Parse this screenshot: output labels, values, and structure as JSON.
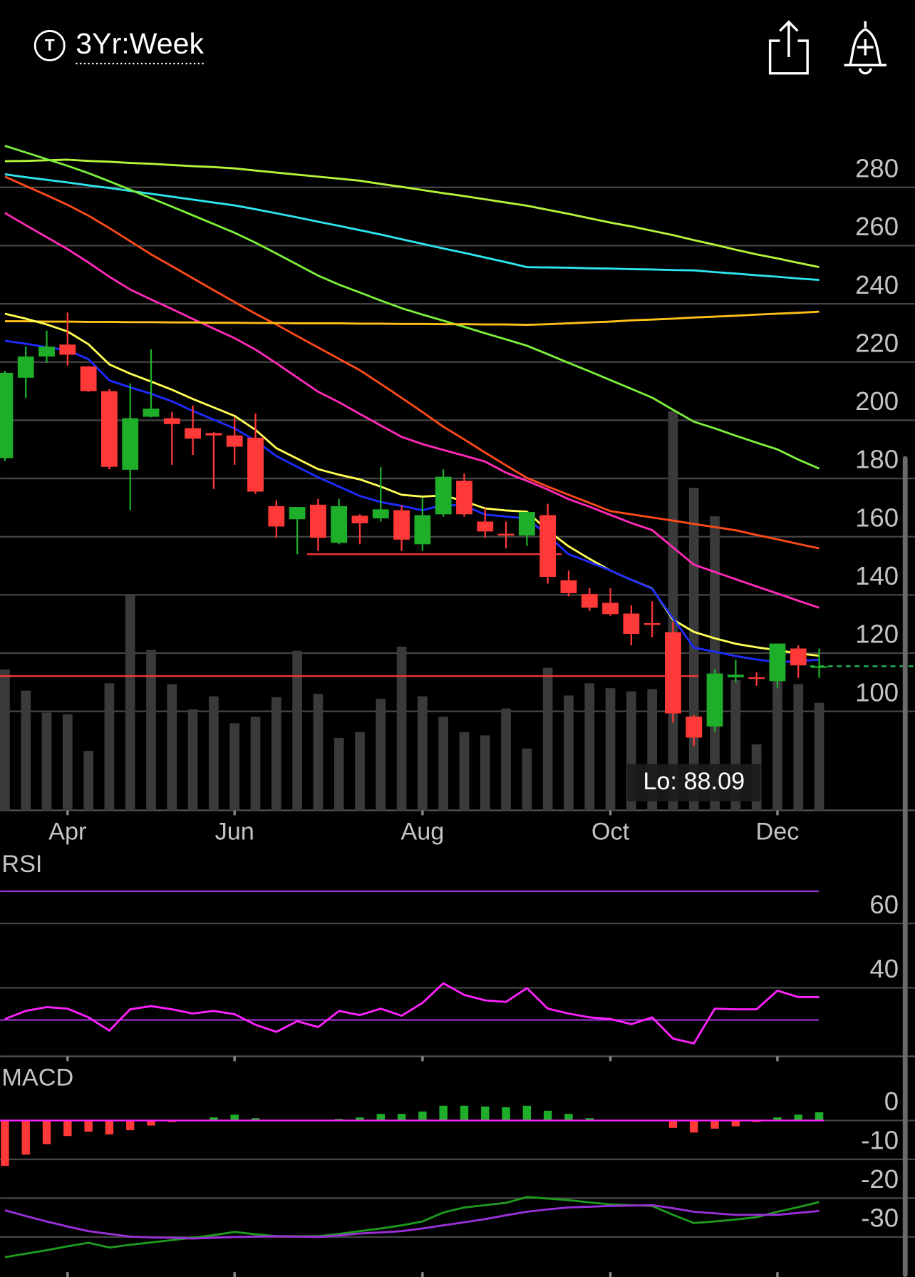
{
  "header": {
    "title": "3Yr:Week"
  },
  "chart_data": [
    {
      "type": "candlestick",
      "categories": [
        null,
        null,
        null,
        "Apr",
        null,
        null,
        null,
        null,
        null,
        null,
        null,
        "Jun",
        null,
        null,
        null,
        null,
        null,
        null,
        null,
        null,
        "Aug",
        null,
        null,
        null,
        null,
        null,
        null,
        null,
        null,
        "Oct",
        null,
        null,
        null,
        null,
        null,
        null,
        null,
        "Dec",
        null,
        null
      ],
      "open": [
        187,
        214.6,
        221.9,
        226,
        218.5,
        210,
        183,
        201.2,
        200.7,
        197.3,
        195.6,
        194.8,
        194,
        170.5,
        166,
        171,
        157.9,
        167.2,
        166.3,
        169.1,
        157.4,
        167.7,
        179.2,
        165.2,
        161,
        160.4,
        167.4,
        145,
        140.3,
        137.3,
        133.6,
        130.3,
        127.2,
        98.2,
        94.8,
        111.7,
        111.7,
        110.4,
        121.6,
        115.2
      ],
      "high": [
        217,
        225.3,
        230.8,
        237,
        218.6,
        210.7,
        212.7,
        224.4,
        202.9,
        205.1,
        195.9,
        201,
        202.3,
        172.5,
        170.2,
        173,
        173,
        167.7,
        183.9,
        170.8,
        173.3,
        183.1,
        181.7,
        169.7,
        165.2,
        168.5,
        171.3,
        148.4,
        142.3,
        142.3,
        136.4,
        137.8,
        130.8,
        98.7,
        114.4,
        117.7,
        113.4,
        122.1,
        122.7,
        121.6
      ],
      "low": [
        186,
        207.7,
        219.7,
        218.8,
        209.8,
        183.1,
        169.1,
        201,
        184.7,
        188.1,
        176.4,
        184.7,
        174.7,
        159.6,
        154,
        155.1,
        157.4,
        157.4,
        165.2,
        155.1,
        155.1,
        166.9,
        166.9,
        159.6,
        156,
        156.8,
        143.9,
        139.5,
        134.5,
        132.8,
        122.7,
        125.5,
        96.2,
        88.09,
        93.1,
        109.9,
        108.8,
        107.9,
        111.5,
        111.5
      ],
      "close": [
        216.3,
        221.9,
        225.3,
        222.5,
        210,
        184,
        200.7,
        204,
        198.7,
        193.7,
        194.8,
        190.9,
        175.5,
        163.5,
        170.2,
        159.6,
        170.5,
        164.6,
        169.4,
        159,
        167.4,
        180.6,
        167.7,
        161.8,
        160.4,
        168.5,
        146.2,
        140.6,
        135.6,
        133.4,
        126.6,
        129.7,
        99.3,
        91,
        113,
        112.6,
        111.2,
        123.3,
        115.8,
        115.5
      ],
      "volume": [
        173,
        147,
        120,
        118,
        73,
        156,
        264,
        197,
        155,
        124,
        140,
        107,
        115,
        139,
        196,
        143,
        89,
        96,
        137,
        201,
        140,
        115,
        96,
        92,
        125,
        76,
        175,
        141,
        156,
        150,
        146,
        149,
        490,
        396,
        361,
        160,
        81,
        165,
        155,
        132
      ],
      "volume_lim": [
        0,
        500
      ],
      "volume_color": "#3a3a3a",
      "up_color": "#1fae2a",
      "down_color": "#ff3838",
      "ylim": [
        66,
        308
      ],
      "yticks": [
        100,
        120,
        140,
        160,
        180,
        200,
        220,
        240,
        260,
        280
      ],
      "grid": true,
      "series": [
        {
          "color": "#b8f53a",
          "values": [
            289,
            289.1,
            289.3,
            289.5,
            289.1,
            288.8,
            288.4,
            288.1,
            287.7,
            287.3,
            287,
            286.5,
            285.8,
            285.1,
            284.4,
            283.7,
            283,
            282.3,
            281.2,
            280.2,
            279.1,
            278,
            277,
            275.9,
            274.8,
            273.7,
            272.3,
            270.9,
            269.4,
            267.9,
            266.6,
            265.1,
            263.6,
            261.9,
            260.3,
            258.6,
            257,
            255.6,
            254.1,
            252.6
          ]
        },
        {
          "color": "#2ee6f0",
          "values": [
            284.5,
            283.5,
            282.6,
            281.7,
            280.7,
            279.8,
            278.8,
            277.8,
            276.8,
            275.8,
            274.8,
            273.8,
            272.5,
            271.1,
            269.7,
            268.2,
            266.8,
            265.3,
            263.8,
            262.2,
            260.6,
            259,
            257.5,
            255.9,
            254.3,
            252.6,
            252.5,
            252.4,
            252.2,
            252.1,
            251.9,
            251.8,
            251.6,
            251.5,
            250.9,
            250.4,
            249.8,
            249.3,
            248.7,
            248.2
          ]
        },
        {
          "color": "#7cf03a",
          "values": [
            294.3,
            292,
            289.7,
            287.4,
            284.9,
            282.1,
            279.2,
            276.3,
            273.4,
            270.4,
            267.4,
            264.4,
            261,
            257.3,
            253.5,
            249.7,
            246.6,
            243.9,
            241.1,
            238.5,
            236.3,
            234.2,
            232.1,
            229.9,
            227.8,
            225.6,
            222.7,
            219.7,
            216.8,
            213.8,
            210.8,
            207.8,
            203.6,
            199.5,
            197.2,
            194.7,
            192.3,
            190,
            186.5,
            183.4
          ]
        },
        {
          "color": "#ff4a1a",
          "values": [
            283.7,
            280.5,
            277.3,
            274,
            270.3,
            266,
            261.5,
            257,
            252.9,
            248.8,
            244.7,
            240.6,
            236.6,
            232.9,
            228.9,
            225,
            221.1,
            217.2,
            212.5,
            207.7,
            202.8,
            197.8,
            193.4,
            188.9,
            184.5,
            180.2,
            177.2,
            174.4,
            171.6,
            168.8,
            167.7,
            166.6,
            165.5,
            164.4,
            163.3,
            162.2,
            160.6,
            159.1,
            157.5,
            156
          ]
        },
        {
          "color": "#ff2ab8",
          "values": [
            271.2,
            267,
            262.9,
            258.8,
            254.2,
            249.3,
            244.9,
            241.5,
            238.2,
            234.8,
            231.5,
            228.2,
            224.3,
            219.6,
            214.7,
            209.8,
            206.2,
            202.2,
            198.2,
            194.3,
            191.8,
            189.8,
            187.8,
            185.8,
            182,
            179.2,
            176.2,
            172.9,
            170.3,
            167.5,
            164.7,
            162.3,
            156.3,
            150.4,
            147.9,
            145.4,
            142.9,
            140.5,
            138,
            135.6
          ]
        },
        {
          "color": "#ffc21a",
          "values": [
            234,
            234,
            233.9,
            233.9,
            233.8,
            233.8,
            233.7,
            233.7,
            233.6,
            233.6,
            233.5,
            233.5,
            233.4,
            233.4,
            233.3,
            233.3,
            233.3,
            233.2,
            233.2,
            233.1,
            233.1,
            233,
            233,
            232.9,
            232.9,
            232.8,
            233,
            233.3,
            233.6,
            233.9,
            234.3,
            234.6,
            234.9,
            235.3,
            235.6,
            235.9,
            236.3,
            236.6,
            236.9,
            237.3
          ]
        },
        {
          "color": "#ffff55",
          "values": [
            236.6,
            234.9,
            232.9,
            230.5,
            226.1,
            219.2,
            216,
            213.3,
            210.5,
            207.3,
            204.4,
            201.5,
            196.7,
            190.4,
            186.8,
            183.2,
            181.3,
            179.7,
            177.2,
            174.4,
            173.8,
            174.2,
            172.2,
            169.7,
            169,
            168.6,
            162.1,
            156.7,
            152.4,
            148.4,
            145.2,
            142.2,
            131.5,
            127.3,
            125.1,
            123.2,
            122,
            121,
            119.9,
            119.1
          ]
        },
        {
          "color": "#1e2cff",
          "values": [
            227.3,
            226.3,
            225.1,
            224.1,
            221,
            213.7,
            211.3,
            209.1,
            206.5,
            203.2,
            200.2,
            197.2,
            193,
            187.7,
            184,
            180.4,
            177.2,
            174,
            171.9,
            170.6,
            169.1,
            170.9,
            170.7,
            167.6,
            166.9,
            166.3,
            160.4,
            154,
            151.3,
            148.4,
            145.2,
            142.1,
            132,
            121.9,
            120.5,
            119,
            117.8,
            116.9,
            117.3,
            117.7
          ]
        }
      ],
      "levels": [
        {
          "value": 112.1,
          "color": "#ff3838",
          "style": "solid"
        },
        {
          "value": 154,
          "color": "#ff3838",
          "style": "solid"
        },
        {
          "value": 115.5,
          "color": "#22c55e",
          "style": "dashed"
        }
      ],
      "annotations": [
        {
          "value": 88.09,
          "label": "Lo: 88.09"
        }
      ]
    },
    {
      "type": "line",
      "title": "RSI",
      "series": [
        {
          "color": "#ff22ff",
          "values": [
            30.3,
            32.8,
            34,
            33.5,
            30.8,
            26.7,
            33.3,
            34.3,
            33.3,
            32,
            32.8,
            31.8,
            28.5,
            26.3,
            29.6,
            27.8,
            32.8,
            31.5,
            33.5,
            31.3,
            35.3,
            41.4,
            37.8,
            36.1,
            35.6,
            39.9,
            33.5,
            32,
            30.8,
            30.3,
            28.7,
            30.8,
            24.2,
            22.7,
            33.5,
            33.3,
            33.3,
            39.1,
            37.1,
            37.1
          ]
        }
      ],
      "levels": [
        70,
        30
      ],
      "level_color": "#9933cc",
      "ylim": [
        18.7,
        78.7
      ],
      "yticks": [
        40,
        60
      ],
      "grid": true
    },
    {
      "type": "macd",
      "title": "MACD",
      "series": [
        {
          "color": "#1f9a1f",
          "values": [
            -35.2,
            -34.3,
            -33.4,
            -32.4,
            -31.5,
            -32.7,
            -32,
            -31.4,
            -30.8,
            -30.2,
            -29.5,
            -28.7,
            -29.3,
            -29.8,
            -29.8,
            -29.8,
            -29.2,
            -28.5,
            -27.8,
            -27,
            -26,
            -23.7,
            -22.4,
            -21.8,
            -21.2,
            -19.7,
            -20.1,
            -20.5,
            -21.1,
            -21.6,
            -21.8,
            -22,
            -24.3,
            -26.4,
            -26,
            -25.5,
            -24.9,
            -23.5,
            -22.3,
            -21
          ]
        },
        {
          "color": "#9b30d9",
          "values": [
            -23.1,
            -24.6,
            -26,
            -27.3,
            -28.5,
            -29.2,
            -29.9,
            -30.1,
            -30.2,
            -30.4,
            -30.2,
            -30,
            -29.9,
            -29.8,
            -29.9,
            -30,
            -29.6,
            -29.1,
            -28.8,
            -28.5,
            -27.8,
            -27,
            -26.2,
            -25.4,
            -24.4,
            -23.5,
            -22.9,
            -22.4,
            -22.2,
            -22,
            -21.9,
            -21.8,
            -22.6,
            -23.5,
            -23.9,
            -24.3,
            -24.3,
            -24.3,
            -23.8,
            -23.3
          ]
        }
      ],
      "histogram": [
        -11.7,
        -8.8,
        -6.1,
        -4,
        -2.9,
        -3.6,
        -2.5,
        -1.3,
        -0.4,
        -0.2,
        0.8,
        1.5,
        0.6,
        0,
        0,
        0.1,
        0.4,
        0.8,
        1.7,
        1.7,
        2.3,
        3.8,
        3.8,
        3.6,
        3.4,
        3.8,
        2.5,
        1.7,
        0.6,
        0,
        0,
        0,
        -1.9,
        -3.1,
        -2.1,
        -1.5,
        -0.4,
        0.8,
        1.5,
        2.1
      ],
      "up_color": "#1fae2a",
      "down_color": "#ff3838",
      "zero_color": "#ff22ff",
      "ylim": [
        -40.3,
        13.8
      ],
      "yticks": [
        0,
        -10,
        -20,
        -30
      ],
      "grid": true
    }
  ]
}
